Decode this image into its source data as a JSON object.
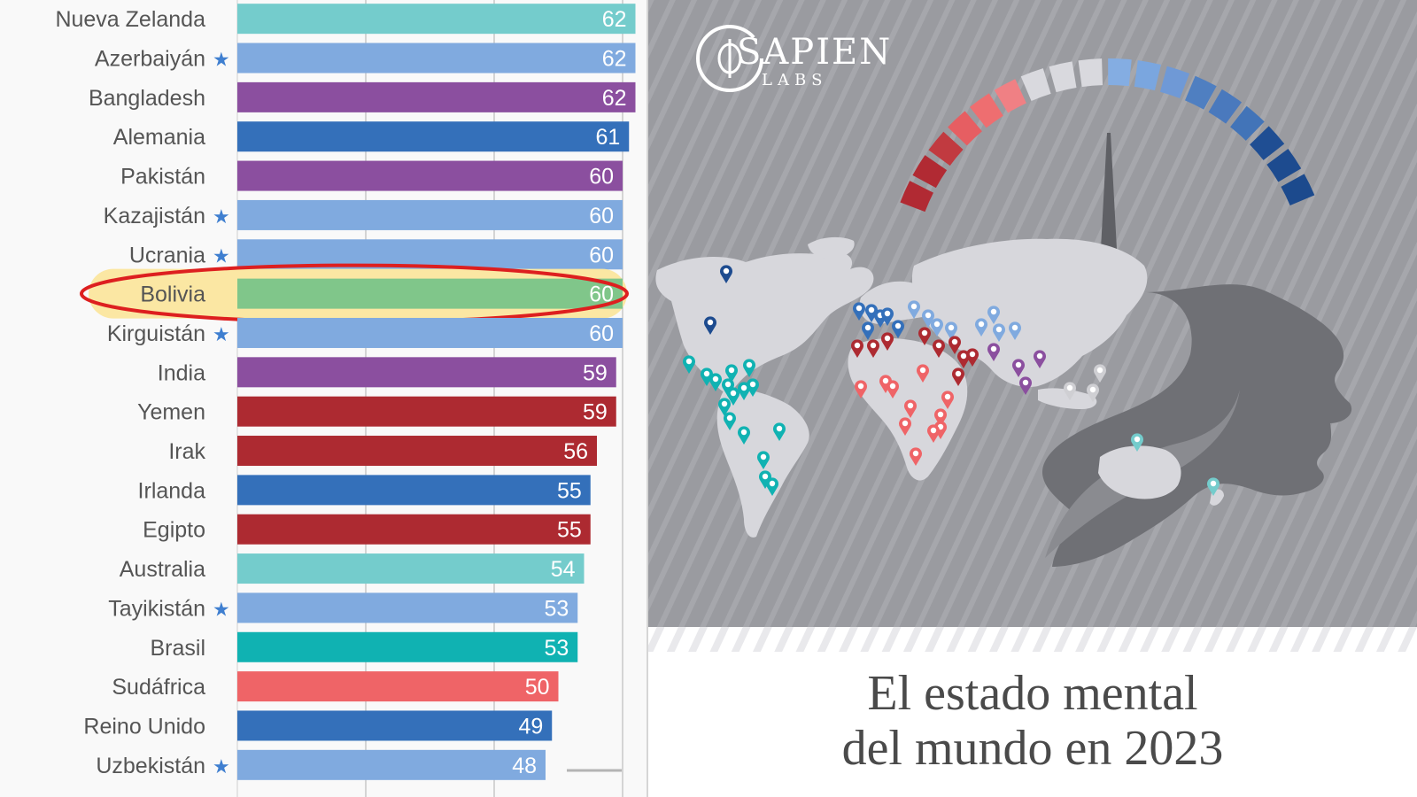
{
  "chart_data": {
    "type": "bar",
    "orientation": "horizontal",
    "categories": [
      "Nueva Zelanda",
      "Azerbaiyán",
      "Bangladesh",
      "Alemania",
      "Pakistán",
      "Kazajistán",
      "Ucrania",
      "Bolivia",
      "Kirguistán",
      "India",
      "Yemen",
      "Irak",
      "Irlanda",
      "Egipto",
      "Australia",
      "Tayikistán",
      "Brasil",
      "Sudáfrica",
      "Reino Unido",
      "Uzbekistán"
    ],
    "values": [
      62,
      62,
      62,
      61,
      60,
      60,
      60,
      60,
      60,
      59,
      59,
      56,
      55,
      55,
      54,
      53,
      53,
      50,
      49,
      48
    ],
    "starred": [
      false,
      true,
      false,
      false,
      false,
      true,
      true,
      false,
      true,
      false,
      false,
      false,
      false,
      false,
      false,
      true,
      false,
      false,
      false,
      true
    ],
    "bar_colors": [
      "#74cccc",
      "#80aadf",
      "#8b4f9f",
      "#3470ba",
      "#8b4f9f",
      "#80aadf",
      "#80aadf",
      "#80c68a",
      "#80aadf",
      "#8b4f9f",
      "#ad2a31",
      "#ad2a31",
      "#3470ba",
      "#ad2a31",
      "#74cccc",
      "#80aadf",
      "#10b2b2",
      "#ef6467",
      "#3470ba",
      "#80aadf"
    ],
    "highlight": {
      "category": "Bolivia",
      "fill": "#fbe7a3",
      "outline": "#dd1f1f"
    },
    "xlim": [
      0,
      80
    ],
    "grid": true,
    "legend": "none",
    "title": "",
    "xlabel": "",
    "ylabel": ""
  },
  "cover": {
    "brand_name": "SAPIEN",
    "brand_sub": "LABS",
    "title_line1": "El estado mental",
    "title_line2": "del mundo en 2023",
    "gauge_colors": [
      "#b12a33",
      "#b12a33",
      "#c13a40",
      "#e65e62",
      "#ee6e70",
      "#f08084",
      "#d9d9de",
      "#d9d9de",
      "#d9d9de",
      "#84ade2",
      "#7aa6df",
      "#6f99d6",
      "#4f7fc1",
      "#4a79bd",
      "#4274b8",
      "#1f4e93",
      "#1d4b8f",
      "#1c4a8d"
    ],
    "background_color": "#9a9ba0",
    "continent_color": "#d7d7dc",
    "head_color": "#6f7075"
  }
}
